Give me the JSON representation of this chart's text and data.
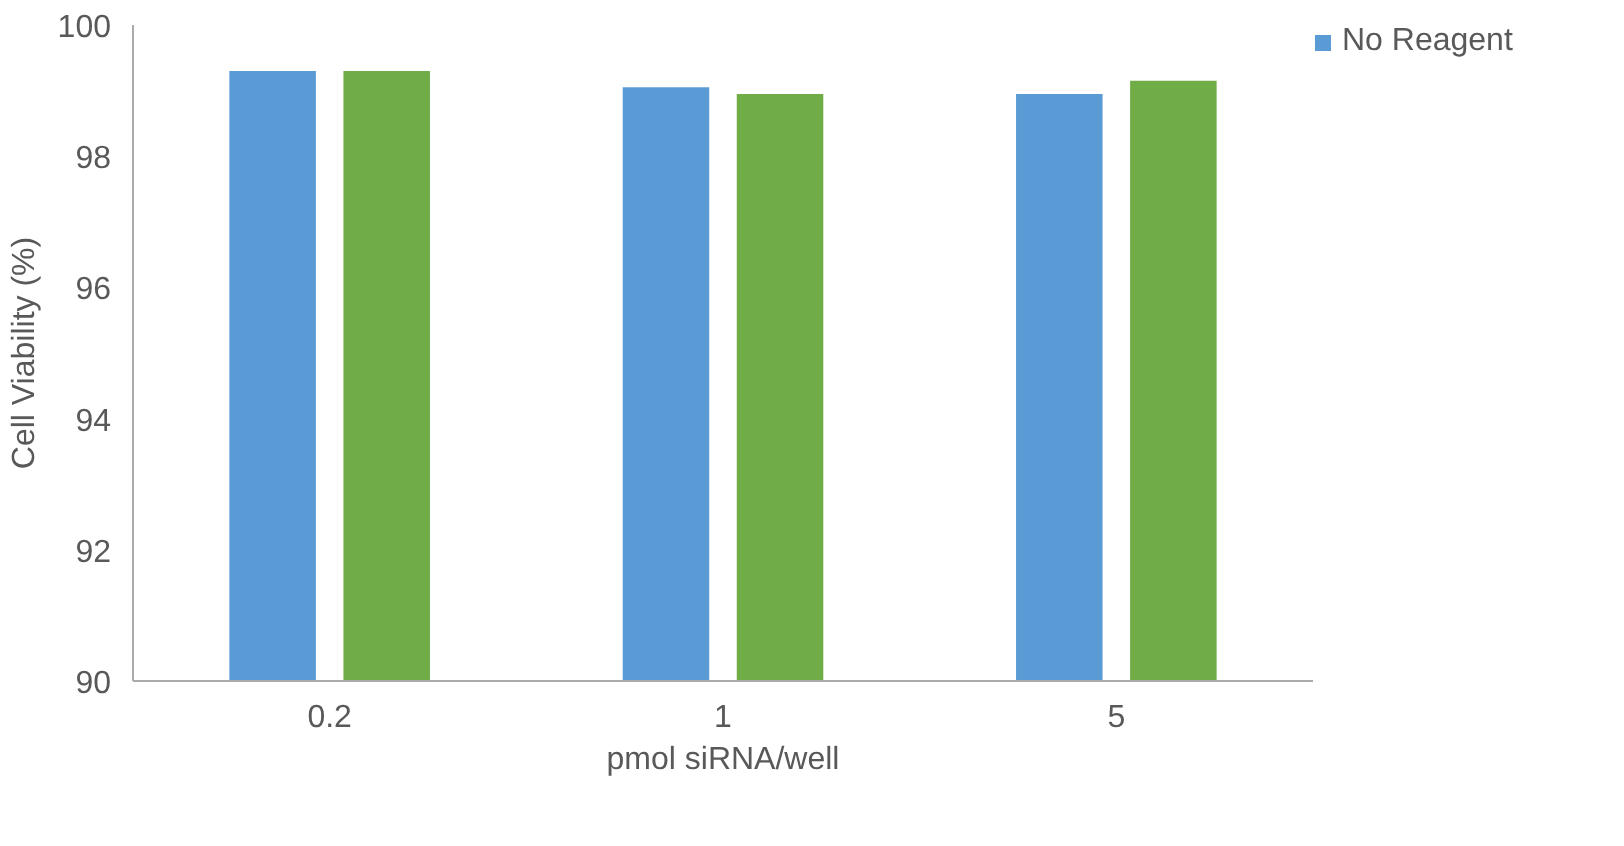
{
  "chart_data": {
    "type": "bar",
    "xlabel": "pmol siRNA/well",
    "ylabel": "Cell Viability (%)",
    "categories": [
      "0.2",
      "1",
      "5"
    ],
    "series": [
      {
        "name": "No Reagent",
        "color": "#5b9bd5",
        "values": [
          99.3,
          99.05,
          98.95
        ]
      },
      {
        "color": "#70ad47",
        "values": [
          99.3,
          98.95,
          99.15
        ]
      }
    ],
    "ylim": [
      90,
      100
    ],
    "yticks": [
      90,
      92,
      94,
      96,
      98,
      100
    ],
    "grid": false,
    "legend": "top right"
  }
}
